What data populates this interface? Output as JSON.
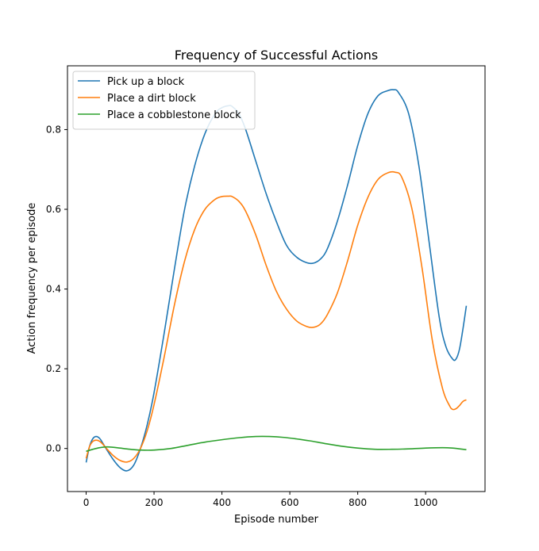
{
  "chart_data": {
    "type": "line",
    "title": "Frequency of Successful Actions",
    "xlabel": "Episode number",
    "ylabel": "Action frequency per episode",
    "xlim": [
      -55,
      1175
    ],
    "ylim": [
      -0.108,
      0.96
    ],
    "xticks": [
      0,
      200,
      400,
      600,
      800,
      1000
    ],
    "yticks": [
      0.0,
      0.2,
      0.4,
      0.6,
      0.8
    ],
    "ytick_labels": [
      "0.0",
      "0.2",
      "0.4",
      "0.6",
      "0.8"
    ],
    "legend_position": "upper-left",
    "grid": false,
    "series": [
      {
        "name": "Pick up a block",
        "color": "#1f77b4",
        "x": [
          0,
          10,
          20,
          30,
          40,
          50,
          60,
          80,
          100,
          120,
          140,
          160,
          180,
          200,
          230,
          260,
          290,
          320,
          350,
          380,
          400,
          420,
          430,
          450,
          470,
          500,
          530,
          560,
          590,
          620,
          650,
          670,
          690,
          710,
          740,
          770,
          800,
          830,
          860,
          890,
          905,
          920,
          950,
          980,
          1010,
          1040,
          1060,
          1080,
          1090,
          1100,
          1110,
          1120
        ],
        "y": [
          -0.035,
          0.005,
          0.025,
          0.03,
          0.025,
          0.012,
          -0.002,
          -0.028,
          -0.048,
          -0.056,
          -0.042,
          0.0,
          0.06,
          0.14,
          0.29,
          0.45,
          0.6,
          0.71,
          0.79,
          0.84,
          0.855,
          0.86,
          0.858,
          0.84,
          0.8,
          0.72,
          0.64,
          0.57,
          0.51,
          0.48,
          0.466,
          0.465,
          0.475,
          0.5,
          0.57,
          0.66,
          0.76,
          0.84,
          0.885,
          0.898,
          0.9,
          0.893,
          0.84,
          0.71,
          0.52,
          0.33,
          0.255,
          0.224,
          0.225,
          0.25,
          0.3,
          0.358
        ]
      },
      {
        "name": "Place a dirt block",
        "color": "#ff7f0e",
        "x": [
          0,
          10,
          20,
          30,
          40,
          50,
          60,
          80,
          100,
          120,
          140,
          160,
          180,
          200,
          230,
          260,
          290,
          320,
          350,
          380,
          400,
          420,
          430,
          450,
          470,
          500,
          530,
          560,
          590,
          620,
          650,
          670,
          690,
          710,
          740,
          770,
          800,
          830,
          860,
          890,
          910,
          930,
          960,
          990,
          1020,
          1050,
          1070,
          1080,
          1090,
          1100,
          1110,
          1120
        ],
        "y": [
          -0.025,
          0.005,
          0.018,
          0.021,
          0.018,
          0.01,
          0.0,
          -0.018,
          -0.03,
          -0.034,
          -0.025,
          0.0,
          0.045,
          0.11,
          0.23,
          0.36,
          0.47,
          0.55,
          0.6,
          0.625,
          0.632,
          0.633,
          0.632,
          0.62,
          0.595,
          0.535,
          0.46,
          0.395,
          0.35,
          0.32,
          0.306,
          0.304,
          0.312,
          0.335,
          0.39,
          0.47,
          0.56,
          0.63,
          0.675,
          0.692,
          0.693,
          0.68,
          0.6,
          0.45,
          0.27,
          0.15,
          0.108,
          0.098,
          0.1,
          0.108,
          0.118,
          0.122
        ]
      },
      {
        "name": "Place a cobblestone block",
        "color": "#2ca02c",
        "x": [
          0,
          20,
          40,
          60,
          80,
          100,
          130,
          160,
          200,
          250,
          300,
          350,
          400,
          450,
          500,
          540,
          580,
          620,
          660,
          700,
          750,
          800,
          850,
          900,
          950,
          1000,
          1050,
          1080,
          1100,
          1120
        ],
        "y": [
          -0.007,
          -0.002,
          0.002,
          0.004,
          0.003,
          0.001,
          -0.002,
          -0.004,
          -0.004,
          0.0,
          0.008,
          0.016,
          0.022,
          0.027,
          0.03,
          0.03,
          0.028,
          0.024,
          0.019,
          0.013,
          0.006,
          0.001,
          -0.002,
          -0.002,
          -0.001,
          0.001,
          0.002,
          0.001,
          -0.001,
          -0.003
        ]
      }
    ]
  }
}
